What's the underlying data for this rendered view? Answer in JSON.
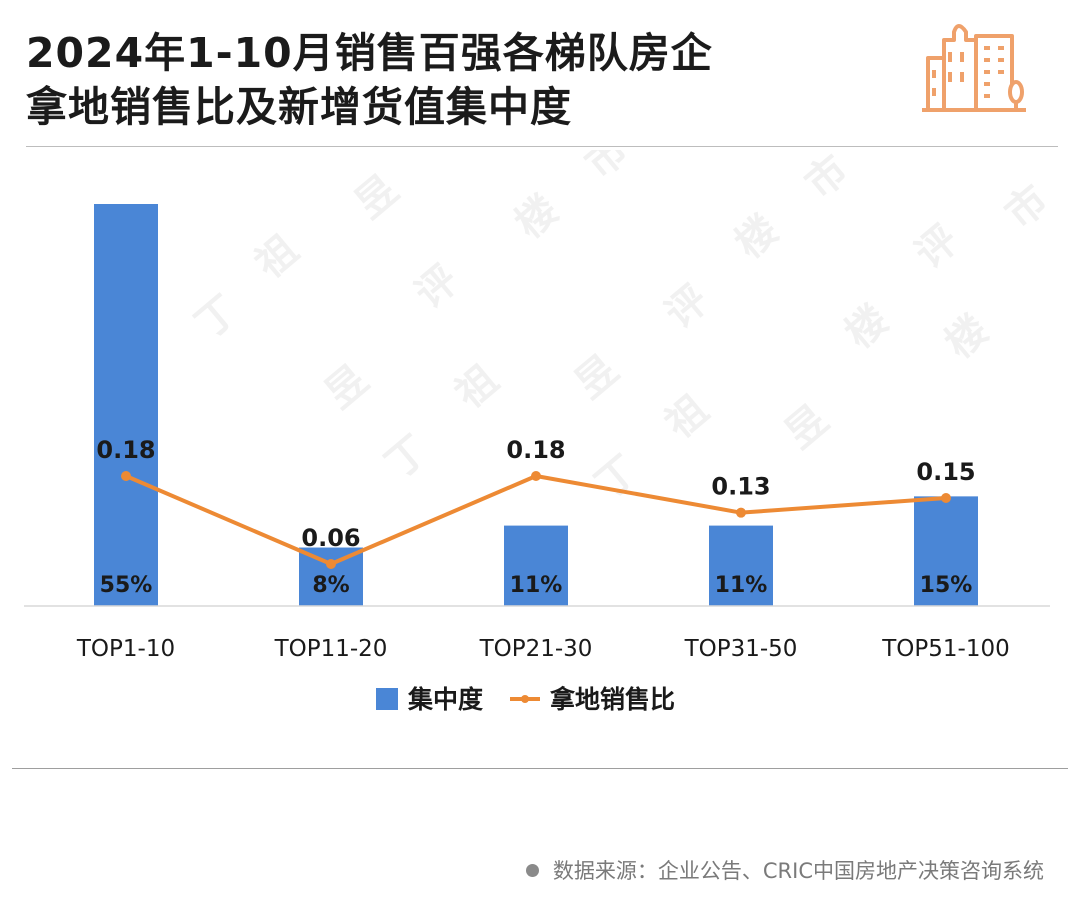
{
  "title": {
    "line1": "2024年1-10月销售百强各梯队房企",
    "line2": "拿地销售比及新增货值集中度"
  },
  "icon": "building-icon",
  "colors": {
    "bar": "#4a86d6",
    "line": "#ed8a34",
    "icon": "#efa16b",
    "axis": "#d9d9d9"
  },
  "chart_data": {
    "type": "bar",
    "categories": [
      "TOP1-10",
      "TOP11-20",
      "TOP21-30",
      "TOP31-50",
      "TOP51-100"
    ],
    "series": [
      {
        "name": "集中度",
        "kind": "bar",
        "values": [
          55,
          8,
          11,
          11,
          15
        ],
        "labels": [
          "55%",
          "8%",
          "11%",
          "11%",
          "15%"
        ]
      },
      {
        "name": "拿地销售比",
        "kind": "line",
        "values": [
          0.18,
          0.06,
          0.18,
          0.13,
          0.15
        ],
        "labels": [
          "0.18",
          "0.06",
          "0.18",
          "0.13",
          "0.15"
        ]
      }
    ],
    "grid": false,
    "legend": "bottom"
  },
  "source": {
    "text": "数据来源：企业公告、CRIC中国房地产决策咨询系统"
  }
}
